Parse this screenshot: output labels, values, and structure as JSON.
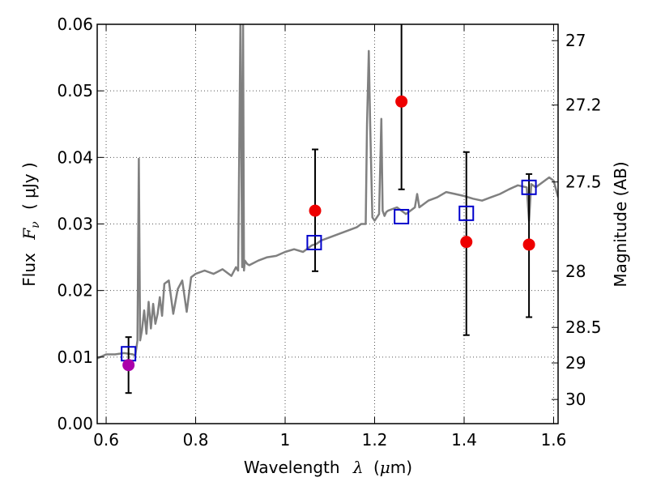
{
  "chart_data": {
    "type": "scatter",
    "xlabel_prefix": "Wavelength",
    "xlabel_symbol": "λ",
    "xlabel_unit_open": "(",
    "xlabel_unit_mu": "μ",
    "xlabel_unit_rest": "m)",
    "ylabel_prefix": "Flux",
    "ylabel_symbol": "F",
    "ylabel_sub": "ν",
    "ylabel_unit": "( μJy )",
    "y2label": "Magnitude (AB)",
    "xlim": [
      0.58,
      1.61
    ],
    "ylim": [
      0.0,
      0.06
    ],
    "grid": true,
    "x_ticks": [
      0.6,
      0.8,
      1.0,
      1.2,
      1.4,
      1.6
    ],
    "x_tick_labels": [
      "0.6",
      "0.8",
      "1",
      "1.2",
      "1.4",
      "1.6"
    ],
    "y_ticks": [
      0.0,
      0.01,
      0.02,
      0.03,
      0.04,
      0.05,
      0.06
    ],
    "y_tick_labels": [
      "0.00",
      "0.01",
      "0.02",
      "0.03",
      "0.04",
      "0.05",
      "0.06"
    ],
    "mag_ticks": [
      27,
      27.2,
      27.5,
      28,
      28.5,
      29,
      30
    ],
    "mag_tick_labels": [
      "27",
      "27.2",
      "27.5",
      "28",
      "28.5",
      "29",
      "30"
    ],
    "colors": {
      "sed": "#808080",
      "model": "#0000cc",
      "observed": "#ee0000",
      "observed_first": "#aa00aa",
      "errorbar": "#000000",
      "grid": "#555555"
    },
    "series": [
      {
        "kind": "sed-model-spectrum",
        "x": [
          0.58,
          0.6,
          0.62,
          0.64,
          0.66,
          0.665,
          0.67,
          0.673,
          0.676,
          0.68,
          0.685,
          0.69,
          0.695,
          0.7,
          0.705,
          0.71,
          0.715,
          0.72,
          0.725,
          0.73,
          0.74,
          0.75,
          0.76,
          0.77,
          0.78,
          0.79,
          0.8,
          0.82,
          0.84,
          0.86,
          0.88,
          0.89,
          0.895,
          0.9,
          0.904,
          0.906,
          0.908,
          0.91,
          0.915,
          0.92,
          0.94,
          0.96,
          0.98,
          1.0,
          1.02,
          1.04,
          1.06,
          1.07,
          1.08,
          1.1,
          1.12,
          1.14,
          1.16,
          1.17,
          1.18,
          1.183,
          1.187,
          1.19,
          1.195,
          1.2,
          1.205,
          1.21,
          1.215,
          1.218,
          1.222,
          1.226,
          1.23,
          1.25,
          1.27,
          1.29,
          1.295,
          1.3,
          1.32,
          1.34,
          1.36,
          1.38,
          1.4,
          1.42,
          1.44,
          1.46,
          1.48,
          1.5,
          1.52,
          1.54,
          1.545,
          1.55,
          1.56,
          1.58,
          1.59,
          1.6,
          1.61
        ],
        "y": [
          0.0098,
          0.0104,
          0.0104,
          0.0106,
          0.0104,
          0.0102,
          0.0125,
          0.0398,
          0.0125,
          0.014,
          0.017,
          0.0135,
          0.0183,
          0.0143,
          0.018,
          0.015,
          0.0165,
          0.019,
          0.0162,
          0.021,
          0.0215,
          0.0165,
          0.0202,
          0.0215,
          0.0168,
          0.022,
          0.0225,
          0.023,
          0.0225,
          0.0232,
          0.0222,
          0.0235,
          0.023,
          0.06,
          0.0235,
          0.06,
          0.023,
          0.0245,
          0.024,
          0.0238,
          0.0245,
          0.025,
          0.0252,
          0.0258,
          0.0262,
          0.0258,
          0.0268,
          0.027,
          0.0275,
          0.028,
          0.0285,
          0.029,
          0.0295,
          0.03,
          0.03,
          0.045,
          0.056,
          0.045,
          0.031,
          0.0305,
          0.031,
          0.0315,
          0.0458,
          0.032,
          0.0312,
          0.0318,
          0.032,
          0.0325,
          0.0315,
          0.0325,
          0.0345,
          0.0325,
          0.0335,
          0.034,
          0.0348,
          0.0345,
          0.0342,
          0.0338,
          0.0335,
          0.034,
          0.0345,
          0.0352,
          0.0358,
          0.0355,
          0.0305,
          0.036,
          0.0355,
          0.0365,
          0.037,
          0.0365,
          0.034
        ]
      },
      {
        "kind": "model-bandpass-flux",
        "marker": "square",
        "x": [
          0.65,
          1.065,
          1.26,
          1.405,
          1.545
        ],
        "y": [
          0.0105,
          0.0272,
          0.0311,
          0.0316,
          0.0355
        ]
      },
      {
        "kind": "observed-flux",
        "marker": "circle",
        "x": [
          0.65,
          1.067,
          1.26,
          1.405,
          1.545
        ],
        "y": [
          0.0088,
          0.032,
          0.0484,
          0.0273,
          0.0269
        ],
        "y_err_low": [
          0.0046,
          0.0229,
          0.0352,
          0.0133,
          0.016
        ],
        "y_err_high": [
          0.013,
          0.0412,
          0.06,
          0.0408,
          0.0375
        ]
      }
    ]
  }
}
